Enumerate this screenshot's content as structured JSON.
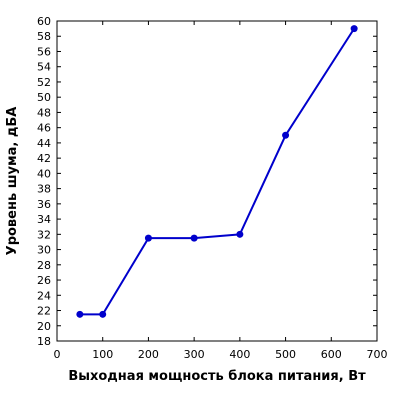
{
  "chart_data": {
    "type": "line",
    "title": "",
    "xlabel": "Выходная мощность блока питания, Вт",
    "ylabel": "Уровень шума, дБА",
    "xlim": [
      0,
      700
    ],
    "ylim": [
      18,
      60
    ],
    "x_ticks": [
      0,
      100,
      200,
      300,
      400,
      500,
      600,
      700
    ],
    "y_ticks": [
      18,
      20,
      22,
      24,
      26,
      28,
      30,
      32,
      34,
      36,
      38,
      40,
      42,
      44,
      46,
      48,
      50,
      52,
      54,
      56,
      58,
      60
    ],
    "grid": false,
    "legend": "none",
    "series": [
      {
        "color": "#0000cc",
        "x": [
          50,
          100,
          200,
          300,
          400,
          500,
          650
        ],
        "y": [
          21.5,
          21.5,
          31.5,
          31.5,
          32.0,
          45.0,
          59.0
        ]
      }
    ]
  }
}
